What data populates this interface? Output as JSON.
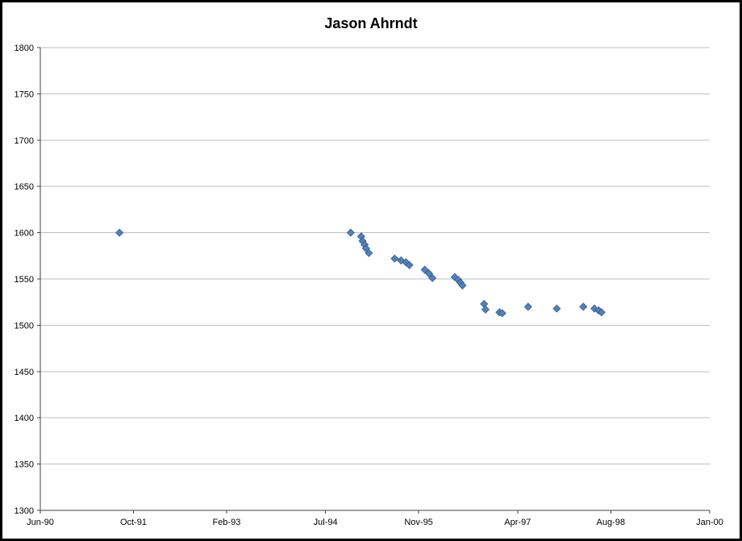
{
  "chart_data": {
    "type": "scatter",
    "title": "Jason Ahrndt",
    "legend": "none",
    "grid": "horizontal",
    "series_color": "#4F81BD",
    "marker_border_color": "#385D8A",
    "marker": "diamond",
    "gridline_color": "#BFBFBF",
    "axis_color": "#404040",
    "x_axis": {
      "min": 1990.417,
      "max": 2000.0,
      "tick_labels": [
        "Jun-90",
        "Oct-91",
        "Feb-93",
        "Jul-94",
        "Nov-95",
        "Apr-97",
        "Aug-98",
        "Jan-00"
      ],
      "tick_values": [
        1990.417,
        1991.75,
        1993.083,
        1994.5,
        1995.833,
        1997.25,
        1998.583,
        2000.0
      ]
    },
    "y_axis": {
      "min": 1300,
      "max": 1800,
      "tick_step": 50,
      "tick_labels": [
        "1300",
        "1350",
        "1400",
        "1450",
        "1500",
        "1550",
        "1600",
        "1650",
        "1700",
        "1750",
        "1800"
      ],
      "tick_values": [
        1300,
        1350,
        1400,
        1450,
        1500,
        1550,
        1600,
        1650,
        1700,
        1750,
        1800
      ]
    },
    "points": [
      [
        1991.55,
        1600
      ],
      [
        1994.86,
        1600
      ],
      [
        1995.01,
        1596
      ],
      [
        1995.03,
        1591
      ],
      [
        1995.06,
        1587
      ],
      [
        1995.08,
        1583
      ],
      [
        1995.12,
        1578
      ],
      [
        1995.49,
        1572
      ],
      [
        1995.58,
        1570
      ],
      [
        1995.65,
        1568
      ],
      [
        1995.7,
        1565
      ],
      [
        1995.92,
        1560
      ],
      [
        1995.98,
        1556
      ],
      [
        1996.03,
        1551
      ],
      [
        1996.35,
        1552
      ],
      [
        1996.4,
        1549
      ],
      [
        1996.43,
        1546
      ],
      [
        1996.46,
        1543
      ],
      [
        1996.77,
        1523
      ],
      [
        1996.79,
        1517
      ],
      [
        1996.99,
        1514
      ],
      [
        1997.03,
        1513
      ],
      [
        1997.4,
        1520
      ],
      [
        1997.81,
        1518
      ],
      [
        1998.19,
        1520
      ],
      [
        1998.35,
        1518
      ],
      [
        1998.41,
        1516
      ],
      [
        1998.45,
        1514
      ]
    ]
  }
}
